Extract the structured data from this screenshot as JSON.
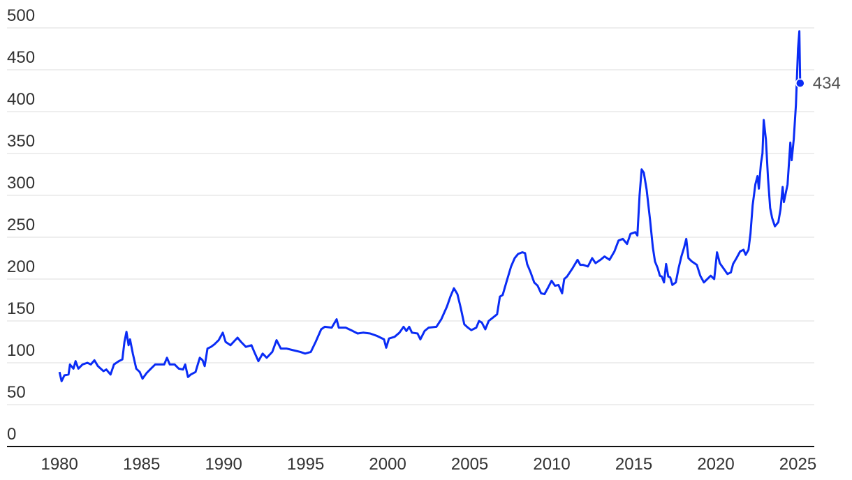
{
  "chart_data": {
    "type": "line",
    "color": "#0a2cf5",
    "grid": true,
    "xlim": [
      1976.8,
      2026
    ],
    "xticks": [
      1980,
      1985,
      1990,
      1995,
      2000,
      2005,
      2010,
      2015,
      2020,
      2025
    ],
    "ylim": [
      0,
      500
    ],
    "yticks": [
      0,
      50,
      100,
      150,
      200,
      250,
      300,
      350,
      400,
      450,
      500
    ],
    "x": [
      1980.0,
      1980.13,
      1980.3,
      1980.55,
      1980.64,
      1980.85,
      1980.98,
      1981.15,
      1981.4,
      1981.7,
      1981.91,
      1982.13,
      1982.34,
      1982.68,
      1982.85,
      1983.11,
      1983.32,
      1983.62,
      1983.83,
      1983.96,
      1984.08,
      1984.21,
      1984.3,
      1984.47,
      1984.68,
      1984.89,
      1985.06,
      1985.32,
      1985.57,
      1985.83,
      1986.17,
      1986.38,
      1986.55,
      1986.72,
      1987.02,
      1987.27,
      1987.53,
      1987.66,
      1987.83,
      1988.0,
      1988.29,
      1988.55,
      1988.72,
      1988.85,
      1989.02,
      1989.23,
      1989.44,
      1989.7,
      1989.95,
      1990.12,
      1990.42,
      1990.85,
      1991.06,
      1991.36,
      1991.7,
      1991.87,
      1992.12,
      1992.38,
      1992.63,
      1992.97,
      1993.23,
      1993.49,
      1993.83,
      1994.25,
      1994.68,
      1994.97,
      1995.32,
      1995.61,
      1995.95,
      1996.17,
      1996.59,
      1996.89,
      1997.02,
      1997.44,
      1997.87,
      1998.17,
      1998.5,
      1998.93,
      1999.36,
      1999.78,
      1999.91,
      2000.08,
      2000.42,
      2000.72,
      2000.97,
      2001.14,
      2001.31,
      2001.48,
      2001.82,
      2001.99,
      2002.25,
      2002.5,
      2002.97,
      2003.27,
      2003.61,
      2003.82,
      2004.04,
      2004.25,
      2004.46,
      2004.67,
      2004.89,
      2005.1,
      2005.4,
      2005.57,
      2005.74,
      2005.95,
      2006.16,
      2006.42,
      2006.67,
      2006.84,
      2007.01,
      2007.23,
      2007.52,
      2007.74,
      2007.95,
      2008.2,
      2008.37,
      2008.5,
      2008.71,
      2008.93,
      2009.14,
      2009.35,
      2009.56,
      2009.78,
      2009.99,
      2010.2,
      2010.41,
      2010.63,
      2010.76,
      2010.93,
      2011.27,
      2011.57,
      2011.74,
      2011.91,
      2012.2,
      2012.46,
      2012.67,
      2012.97,
      2013.22,
      2013.52,
      2013.82,
      2014.07,
      2014.33,
      2014.59,
      2014.8,
      2015.09,
      2015.22,
      2015.35,
      2015.48,
      2015.61,
      2015.78,
      2015.99,
      2016.16,
      2016.29,
      2016.46,
      2016.59,
      2016.71,
      2016.84,
      2016.97,
      2017.1,
      2017.22,
      2017.35,
      2017.56,
      2017.73,
      2017.9,
      2018.07,
      2018.2,
      2018.33,
      2018.54,
      2018.84,
      2019.05,
      2019.27,
      2019.48,
      2019.69,
      2019.9,
      2020.07,
      2020.24,
      2020.46,
      2020.71,
      2020.92,
      2021.05,
      2021.26,
      2021.48,
      2021.69,
      2021.82,
      2021.99,
      2022.11,
      2022.24,
      2022.41,
      2022.54,
      2022.62,
      2022.75,
      2022.84,
      2022.92,
      2023.05,
      2023.18,
      2023.31,
      2023.43,
      2023.6,
      2023.81,
      2023.94,
      2024.07,
      2024.15,
      2024.37,
      2024.54,
      2024.62,
      2024.75,
      2024.88,
      2025.01,
      2025.09,
      2025.14
    ],
    "values": [
      89,
      78,
      85,
      86,
      98,
      93,
      102,
      93,
      98,
      100,
      98,
      103,
      96,
      90,
      92,
      86,
      98,
      102,
      104,
      125,
      137,
      121,
      128,
      111,
      93,
      89,
      81,
      88,
      93,
      98,
      98,
      98,
      106,
      98,
      98,
      93,
      92,
      98,
      83,
      86,
      89,
      106,
      103,
      96,
      117,
      119,
      122,
      127,
      136,
      125,
      121,
      130,
      125,
      119,
      121,
      113,
      102,
      111,
      106,
      113,
      127,
      117,
      117,
      115,
      113,
      111,
      113,
      125,
      140,
      143,
      142,
      152,
      142,
      142,
      138,
      135,
      136,
      135,
      132,
      128,
      118,
      129,
      131,
      136,
      143,
      138,
      143,
      136,
      135,
      128,
      138,
      142,
      143,
      152,
      167,
      179,
      189,
      182,
      165,
      146,
      142,
      139,
      142,
      150,
      148,
      140,
      150,
      154,
      158,
      179,
      181,
      196,
      215,
      225,
      230,
      232,
      231,
      218,
      208,
      196,
      192,
      183,
      182,
      190,
      198,
      192,
      193,
      183,
      200,
      203,
      213,
      223,
      217,
      217,
      215,
      225,
      219,
      223,
      227,
      223,
      233,
      246,
      248,
      242,
      254,
      256,
      252,
      300,
      331,
      327,
      307,
      271,
      238,
      221,
      213,
      204,
      203,
      196,
      218,
      203,
      202,
      193,
      196,
      213,
      227,
      238,
      248,
      225,
      221,
      217,
      204,
      196,
      200,
      204,
      200,
      232,
      219,
      213,
      206,
      208,
      218,
      225,
      233,
      235,
      229,
      235,
      254,
      288,
      313,
      323,
      308,
      338,
      350,
      390,
      367,
      321,
      285,
      273,
      263,
      268,
      283,
      310,
      292,
      313,
      363,
      342,
      367,
      408,
      475,
      496,
      434
    ]
  }
}
